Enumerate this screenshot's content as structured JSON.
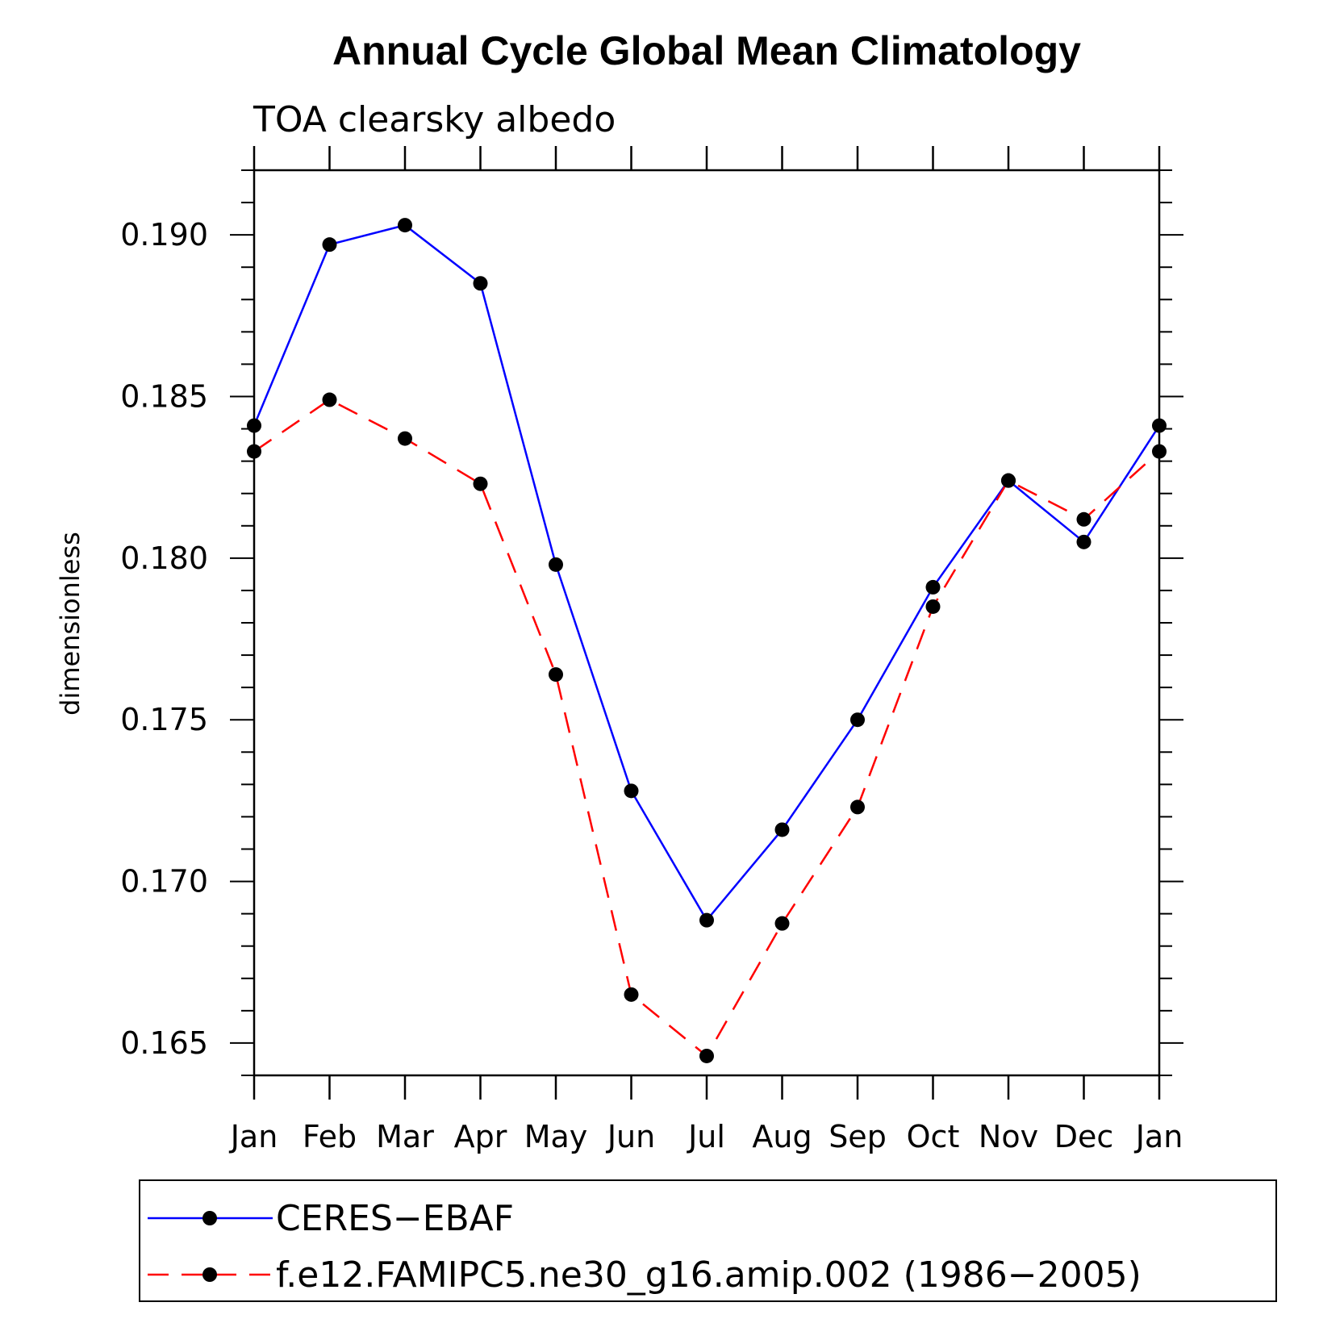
{
  "chart_data": {
    "type": "line",
    "title": "Annual Cycle Global Mean Climatology",
    "subtitle": "TOA clearsky albedo",
    "ylabel": "dimensionless",
    "xlabel": "",
    "categories": [
      "Jan",
      "Feb",
      "Mar",
      "Apr",
      "May",
      "Jun",
      "Jul",
      "Aug",
      "Sep",
      "Oct",
      "Nov",
      "Dec",
      "Jan"
    ],
    "ylim": [
      0.164,
      0.192
    ],
    "yticks": [
      "0.165",
      "0.170",
      "0.175",
      "0.180",
      "0.185",
      "0.190"
    ],
    "ytick_values": [
      0.165,
      0.17,
      0.175,
      0.18,
      0.185,
      0.19
    ],
    "grid": false,
    "legend_position": "bottom",
    "series": [
      {
        "name": "CERES−EBAF",
        "color": "#0000ff",
        "dash": "solid",
        "marker": "filled-circle",
        "values": [
          0.1841,
          0.1897,
          0.1903,
          0.1885,
          0.1798,
          0.1728,
          0.1688,
          0.1716,
          0.175,
          0.1791,
          0.1824,
          0.1805,
          0.1841
        ]
      },
      {
        "name": "f.e12.FAMIPC5.ne30_g16.amip.002 (1986−2005)",
        "color": "#ff0000",
        "dash": "dashed",
        "marker": "filled-circle",
        "values": [
          0.1833,
          0.1849,
          0.1837,
          0.1823,
          0.1764,
          0.1665,
          0.1646,
          0.1687,
          0.1723,
          0.1785,
          0.1824,
          0.1812,
          0.1833
        ]
      }
    ]
  }
}
